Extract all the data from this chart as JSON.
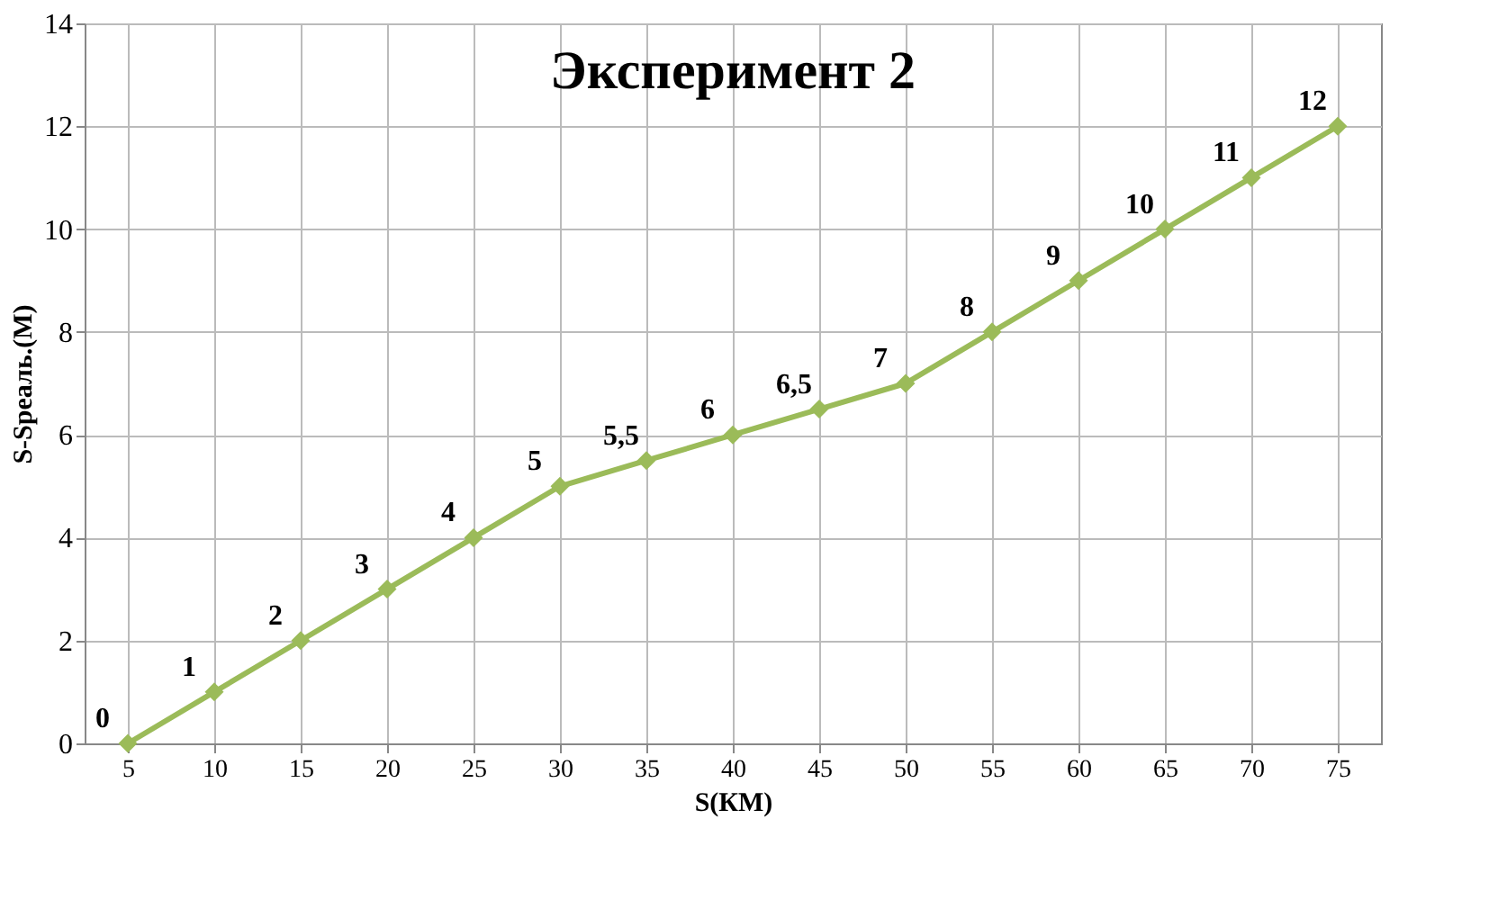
{
  "chart_data": {
    "type": "line",
    "title": "Эксперимент 2",
    "xlabel": "S(КМ)",
    "ylabel": "S-Sреаль.(М)",
    "categories": [
      "5",
      "10",
      "15",
      "20",
      "25",
      "30",
      "35",
      "40",
      "45",
      "50",
      "55",
      "60",
      "65",
      "70",
      "75"
    ],
    "series": [
      {
        "color": "#9bbb59",
        "values": [
          0,
          1,
          2,
          3,
          4,
          5,
          5.5,
          6,
          6.5,
          7,
          8,
          9,
          10,
          11,
          12
        ],
        "value_labels": [
          "0",
          "1",
          "2",
          "3",
          "4",
          "5",
          "5,5",
          "6",
          "6,5",
          "7",
          "8",
          "9",
          "10",
          "11",
          "12"
        ]
      }
    ],
    "ylim": [
      0,
      14
    ],
    "yticks": [
      0,
      2,
      4,
      6,
      8,
      10,
      12,
      14
    ],
    "grid": true,
    "marker": "diamond",
    "line_style": "solid"
  }
}
